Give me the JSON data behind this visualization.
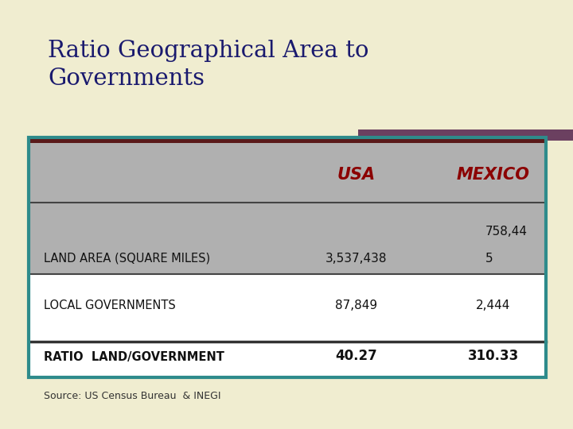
{
  "title_line1": "Ratio Geographical Area to",
  "title_line2": "Governments",
  "title_color": "#1a1a6e",
  "bg_outer": "#f0edd0",
  "col_headers": [
    "USA",
    "MEXICO"
  ],
  "col_header_color": "#8b0000",
  "mexico_line1": "758,44",
  "mexico_line2": "5",
  "usa_land": "3,537,438",
  "usa_gov": "87,849",
  "mexico_gov": "2,444",
  "usa_ratio": "40.27",
  "mexico_ratio": "310.33",
  "label_land": "LAND AREA (SQUARE MILES)",
  "label_gov": "LOCAL GOVERNMENTS",
  "label_ratio": "RATIO  LAND/GOVERNMENT",
  "source": "Source: US Census Bureau  & INEGI",
  "accent_bar_color": "#6b4060",
  "maroon_line_color": "#5a1a1a",
  "teal_border": "#2e8b8b",
  "gray_bg": "#b0b0b0",
  "white_bg": "#ffffff",
  "row1_bg": "#b0b0b0",
  "row2_bg": "#ffffff",
  "row3_bg": "#ffffff"
}
